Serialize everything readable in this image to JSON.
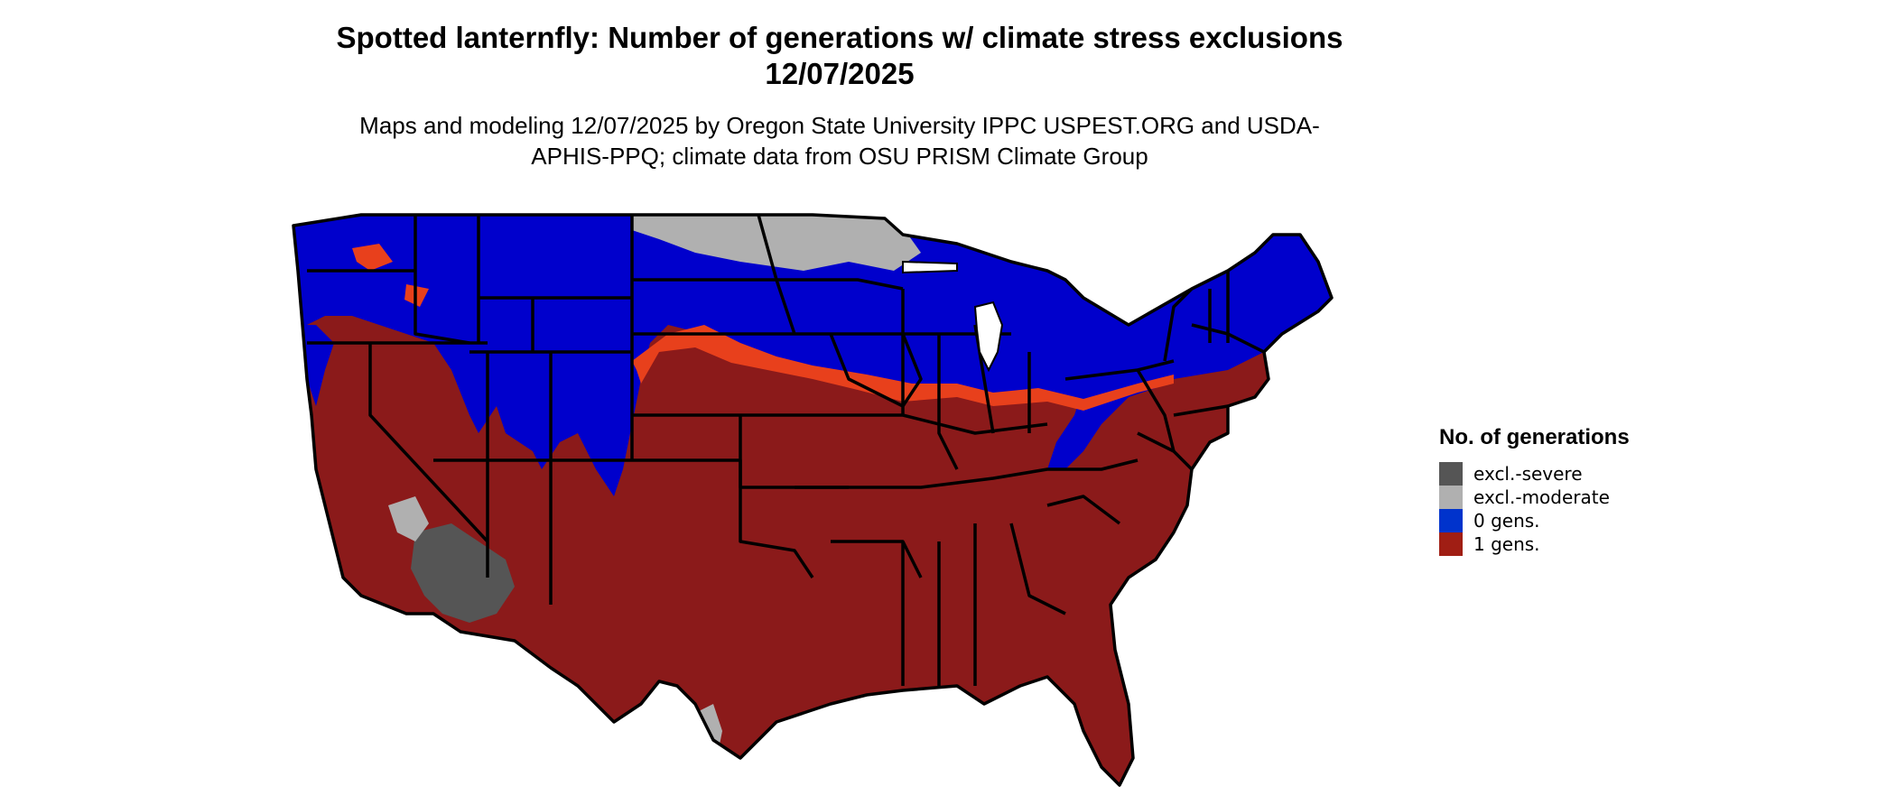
{
  "title": "Spotted lanternfly: Number of generations w/ climate stress exclusions 12/07/2025",
  "subtitle": "Maps and modeling 12/07/2025 by Oregon State University IPPC USPEST.ORG and USDA-APHIS-PPQ; climate data from OSU PRISM Climate Group",
  "legend": {
    "title": "No. of generations",
    "items": [
      {
        "label": "excl.-severe",
        "color": "#555555"
      },
      {
        "label": "excl.-moderate",
        "color": "#b0b0b0"
      },
      {
        "label": "0 gens.",
        "color": "#0033cc"
      },
      {
        "label": "1 gens.",
        "color": "#a01e14"
      }
    ]
  },
  "map": {
    "colors": {
      "severe": "#555555",
      "moderate": "#b0b0b0",
      "zero": "#0000cc",
      "one": "#8b1a1a",
      "transition": "#e8401c",
      "borders": "#000000"
    }
  }
}
